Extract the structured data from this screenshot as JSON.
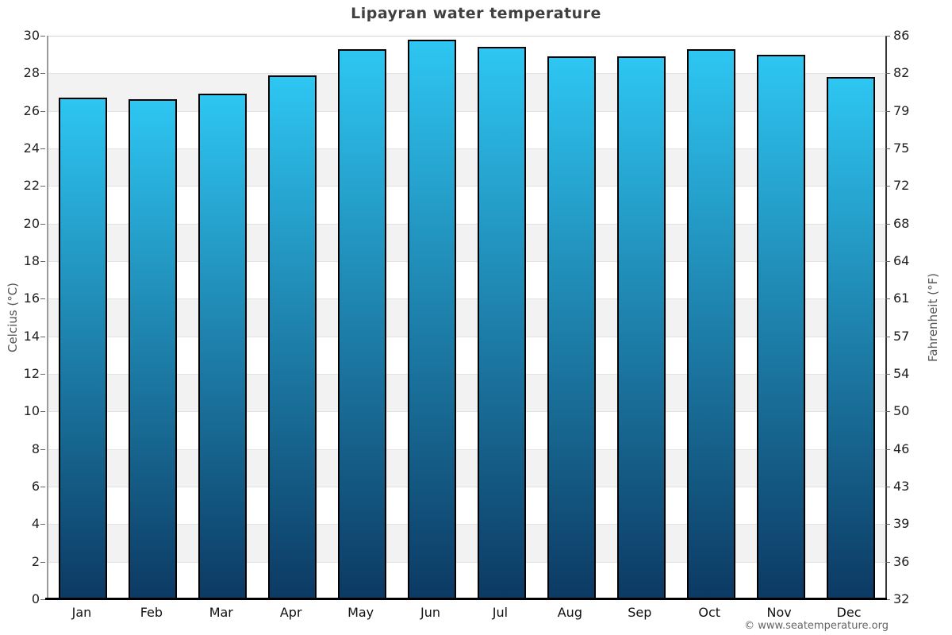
{
  "page": {
    "title": "Lipayran water temperature",
    "copyright": "© www.seatemperature.org"
  },
  "chart_data": {
    "type": "bar",
    "title": "Lipayran water temperature",
    "categories": [
      "Jan",
      "Feb",
      "Mar",
      "Apr",
      "May",
      "Jun",
      "Jul",
      "Aug",
      "Sep",
      "Oct",
      "Nov",
      "Dec"
    ],
    "values": [
      26.7,
      26.6,
      26.9,
      27.9,
      29.3,
      29.8,
      29.4,
      28.9,
      28.9,
      29.3,
      29.0,
      27.8
    ],
    "unit": "°C",
    "ylabel_left": "Celcius (°C)",
    "ylabel_right": "Fahrenheit (°F)",
    "ylim": [
      0,
      30
    ],
    "yticks_left": [
      0,
      2,
      4,
      6,
      8,
      10,
      12,
      14,
      16,
      18,
      20,
      22,
      24,
      26,
      28,
      30
    ],
    "yticks_right": [
      "32",
      "36",
      "39",
      "43",
      "46",
      "50",
      "54",
      "57",
      "61",
      "64",
      "68",
      "72",
      "75",
      "79",
      "82",
      "86"
    ],
    "legend": "none",
    "grid": "alternating horizontal bands every 2°C",
    "colors": {
      "bar_gradient_top": "#2ec6f2",
      "bar_gradient_bottom": "#0c3a63",
      "bar_border": "#000000",
      "band_gray": "#f2f2f2",
      "band_white": "#ffffff",
      "gridline": "#e2e2e2",
      "title_text": "#404040",
      "tick_text": "#222222",
      "axis_title_text": "#555555",
      "copyright_text": "#666666"
    }
  }
}
